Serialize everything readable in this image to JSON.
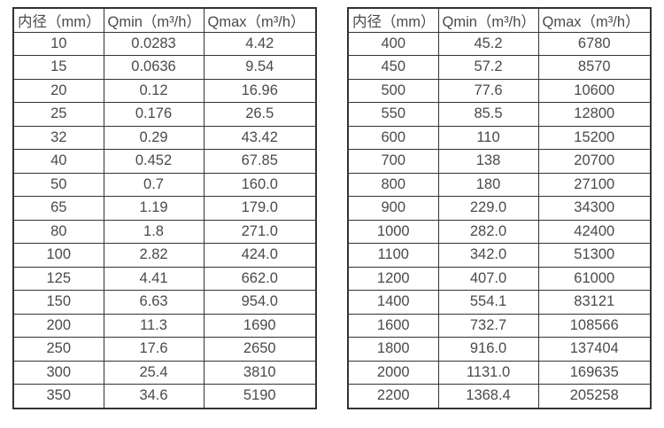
{
  "table_left": {
    "headers": [
      "内径（mm）",
      "Qmin（m³/h）",
      "Qmax（m³/h）"
    ],
    "rows": [
      [
        "10",
        "0.0283",
        "4.42"
      ],
      [
        "15",
        "0.0636",
        "9.54"
      ],
      [
        "20",
        "0.12",
        "16.96"
      ],
      [
        "25",
        "0.176",
        "26.5"
      ],
      [
        "32",
        "0.29",
        "43.42"
      ],
      [
        "40",
        "0.452",
        "67.85"
      ],
      [
        "50",
        "0.7",
        "160.0"
      ],
      [
        "65",
        "1.19",
        "179.0"
      ],
      [
        "80",
        "1.8",
        "271.0"
      ],
      [
        "100",
        "2.82",
        "424.0"
      ],
      [
        "125",
        "4.41",
        "662.0"
      ],
      [
        "150",
        "6.63",
        "954.0"
      ],
      [
        "200",
        "11.3",
        "1690"
      ],
      [
        "250",
        "17.6",
        "2650"
      ],
      [
        "300",
        "25.4",
        "3810"
      ],
      [
        "350",
        "34.6",
        "5190"
      ]
    ]
  },
  "table_right": {
    "headers": [
      "内径（mm）",
      "Qmin（m³/h）",
      "Qmax（m³/h）"
    ],
    "rows": [
      [
        "400",
        "45.2",
        "6780"
      ],
      [
        "450",
        "57.2",
        "8570"
      ],
      [
        "500",
        "77.6",
        "10600"
      ],
      [
        "550",
        "85.5",
        "12800"
      ],
      [
        "600",
        "110",
        "15200"
      ],
      [
        "700",
        "138",
        "20700"
      ],
      [
        "800",
        "180",
        "27100"
      ],
      [
        "900",
        "229.0",
        "34300"
      ],
      [
        "1000",
        "282.0",
        "42400"
      ],
      [
        "1100",
        "342.0",
        "51300"
      ],
      [
        "1200",
        "407.0",
        "61000"
      ],
      [
        "1400",
        "554.1",
        "83121"
      ],
      [
        "1600",
        "732.7",
        "108566"
      ],
      [
        "1800",
        "916.0",
        "137404"
      ],
      [
        "2000",
        "1131.0",
        "169635"
      ],
      [
        "2200",
        "1368.4",
        "205258"
      ]
    ]
  },
  "colors": {
    "border": "#333333",
    "text": "#4a4a4a",
    "background": "#ffffff"
  }
}
